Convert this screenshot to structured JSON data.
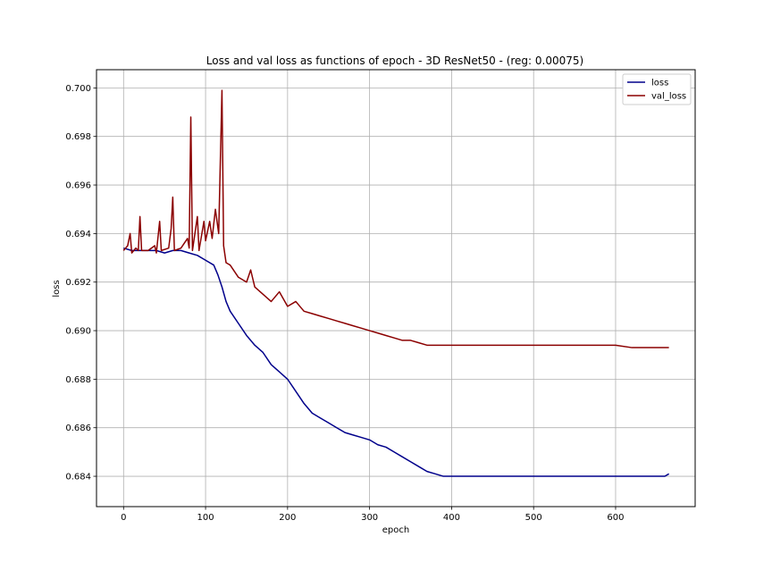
{
  "chart_data": {
    "type": "line",
    "title": "Loss and val loss as functions of epoch - 3D ResNet50 - (reg: 0.00075)",
    "xlabel": "epoch",
    "ylabel": "loss",
    "xlim": [
      -33,
      697
    ],
    "ylim": [
      0.68275,
      0.70075
    ],
    "xticks": [
      0,
      100,
      200,
      300,
      400,
      500,
      600
    ],
    "yticks": [
      0.684,
      0.686,
      0.688,
      0.69,
      0.692,
      0.694,
      0.696,
      0.698,
      0.7
    ],
    "ytick_labels": [
      "0.684",
      "0.686",
      "0.688",
      "0.690",
      "0.692",
      "0.694",
      "0.696",
      "0.698",
      "0.700"
    ],
    "grid": true,
    "legend_position": "top-right",
    "series": [
      {
        "name": "loss",
        "color": "#00008b",
        "points": [
          [
            0,
            0.6934
          ],
          [
            10,
            0.6933
          ],
          [
            20,
            0.6933
          ],
          [
            30,
            0.6933
          ],
          [
            40,
            0.6933
          ],
          [
            50,
            0.6932
          ],
          [
            60,
            0.6933
          ],
          [
            70,
            0.6933
          ],
          [
            80,
            0.6932
          ],
          [
            90,
            0.6931
          ],
          [
            100,
            0.6929
          ],
          [
            110,
            0.6927
          ],
          [
            115,
            0.6923
          ],
          [
            120,
            0.6918
          ],
          [
            125,
            0.6912
          ],
          [
            130,
            0.6908
          ],
          [
            140,
            0.6903
          ],
          [
            150,
            0.6898
          ],
          [
            160,
            0.6894
          ],
          [
            170,
            0.6891
          ],
          [
            180,
            0.6886
          ],
          [
            190,
            0.6883
          ],
          [
            200,
            0.688
          ],
          [
            210,
            0.6875
          ],
          [
            220,
            0.687
          ],
          [
            230,
            0.6866
          ],
          [
            240,
            0.6864
          ],
          [
            250,
            0.6862
          ],
          [
            260,
            0.686
          ],
          [
            270,
            0.6858
          ],
          [
            280,
            0.6857
          ],
          [
            290,
            0.6856
          ],
          [
            300,
            0.6855
          ],
          [
            310,
            0.6853
          ],
          [
            320,
            0.6852
          ],
          [
            330,
            0.685
          ],
          [
            340,
            0.6848
          ],
          [
            350,
            0.6846
          ],
          [
            360,
            0.6844
          ],
          [
            370,
            0.6842
          ],
          [
            380,
            0.6841
          ],
          [
            390,
            0.684
          ],
          [
            400,
            0.684
          ],
          [
            420,
            0.684
          ],
          [
            440,
            0.684
          ],
          [
            460,
            0.684
          ],
          [
            480,
            0.684
          ],
          [
            500,
            0.684
          ],
          [
            520,
            0.684
          ],
          [
            540,
            0.684
          ],
          [
            560,
            0.684
          ],
          [
            580,
            0.684
          ],
          [
            600,
            0.684
          ],
          [
            620,
            0.684
          ],
          [
            640,
            0.684
          ],
          [
            660,
            0.684
          ],
          [
            665,
            0.6841
          ]
        ]
      },
      {
        "name": "val_loss",
        "color": "#8b0000",
        "points": [
          [
            0,
            0.6933
          ],
          [
            5,
            0.6935
          ],
          [
            8,
            0.694
          ],
          [
            10,
            0.6932
          ],
          [
            15,
            0.6934
          ],
          [
            18,
            0.6933
          ],
          [
            20,
            0.6947
          ],
          [
            22,
            0.6933
          ],
          [
            30,
            0.6933
          ],
          [
            38,
            0.6935
          ],
          [
            40,
            0.6932
          ],
          [
            44,
            0.6945
          ],
          [
            46,
            0.6933
          ],
          [
            55,
            0.6934
          ],
          [
            58,
            0.6942
          ],
          [
            60,
            0.6955
          ],
          [
            62,
            0.6933
          ],
          [
            70,
            0.6934
          ],
          [
            78,
            0.6938
          ],
          [
            80,
            0.6934
          ],
          [
            82,
            0.6988
          ],
          [
            84,
            0.6933
          ],
          [
            90,
            0.6947
          ],
          [
            92,
            0.6933
          ],
          [
            98,
            0.6945
          ],
          [
            100,
            0.6937
          ],
          [
            105,
            0.6945
          ],
          [
            108,
            0.6938
          ],
          [
            112,
            0.695
          ],
          [
            116,
            0.694
          ],
          [
            120,
            0.6999
          ],
          [
            122,
            0.6935
          ],
          [
            125,
            0.6928
          ],
          [
            130,
            0.6927
          ],
          [
            140,
            0.6922
          ],
          [
            150,
            0.692
          ],
          [
            155,
            0.6925
          ],
          [
            160,
            0.6918
          ],
          [
            170,
            0.6915
          ],
          [
            180,
            0.6912
          ],
          [
            190,
            0.6916
          ],
          [
            200,
            0.691
          ],
          [
            210,
            0.6912
          ],
          [
            220,
            0.6908
          ],
          [
            230,
            0.6907
          ],
          [
            240,
            0.6906
          ],
          [
            250,
            0.6905
          ],
          [
            260,
            0.6904
          ],
          [
            270,
            0.6903
          ],
          [
            280,
            0.6902
          ],
          [
            290,
            0.6901
          ],
          [
            300,
            0.69
          ],
          [
            310,
            0.6899
          ],
          [
            320,
            0.6898
          ],
          [
            330,
            0.6897
          ],
          [
            340,
            0.6896
          ],
          [
            350,
            0.6896
          ],
          [
            360,
            0.6895
          ],
          [
            370,
            0.6894
          ],
          [
            380,
            0.6894
          ],
          [
            390,
            0.6894
          ],
          [
            400,
            0.6894
          ],
          [
            420,
            0.6894
          ],
          [
            440,
            0.6894
          ],
          [
            460,
            0.6894
          ],
          [
            480,
            0.6894
          ],
          [
            500,
            0.6894
          ],
          [
            520,
            0.6894
          ],
          [
            540,
            0.6894
          ],
          [
            560,
            0.6894
          ],
          [
            580,
            0.6894
          ],
          [
            600,
            0.6894
          ],
          [
            620,
            0.6893
          ],
          [
            640,
            0.6893
          ],
          [
            660,
            0.6893
          ],
          [
            665,
            0.6893
          ]
        ]
      }
    ]
  }
}
